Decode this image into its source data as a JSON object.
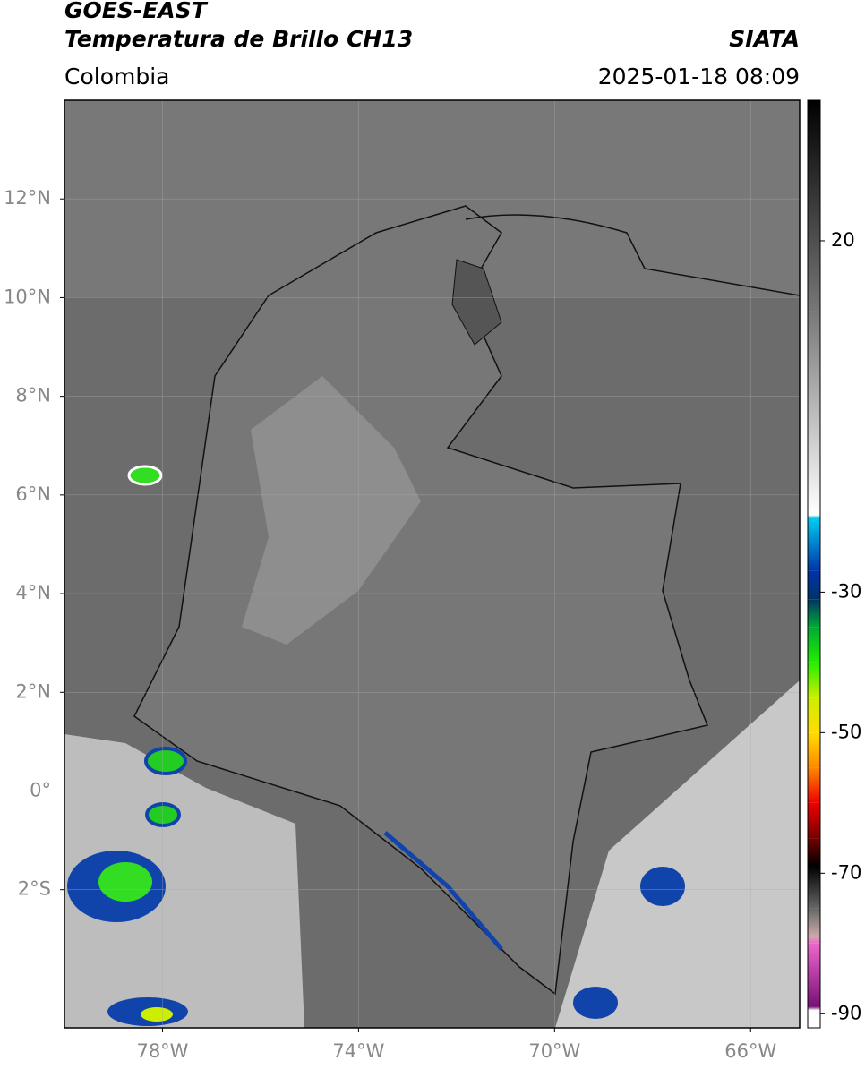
{
  "header": {
    "satellite": "GOES-EAST",
    "product": "Temperatura de Brillo CH13",
    "agency": "SIATA",
    "region": "Colombia",
    "datetime": "2025-01-18 08:09"
  },
  "map": {
    "xlim": [
      -80,
      -65
    ],
    "ylim": [
      -4.8,
      14
    ],
    "xticks": [
      {
        "value": -78,
        "label": "78°W"
      },
      {
        "value": -74,
        "label": "74°W"
      },
      {
        "value": -70,
        "label": "70°W"
      },
      {
        "value": -66,
        "label": "66°W"
      }
    ],
    "yticks": [
      {
        "value": -2,
        "label": "2°S"
      },
      {
        "value": 0,
        "label": "0°"
      },
      {
        "value": 2,
        "label": "2°N"
      },
      {
        "value": 4,
        "label": "4°N"
      },
      {
        "value": 6,
        "label": "6°N"
      },
      {
        "value": 8,
        "label": "8°N"
      },
      {
        "value": 10,
        "label": "10°N"
      },
      {
        "value": 12,
        "label": "12°N"
      }
    ],
    "grid": true
  },
  "colorbar": {
    "clim": [
      -92,
      40
    ],
    "ticks": [
      20,
      -30,
      -50,
      -70,
      -90
    ],
    "colors": [
      {
        "value": 40,
        "color": "#000000"
      },
      {
        "value": 10,
        "color": "#777777"
      },
      {
        "value": -19,
        "color": "#ffffff"
      },
      {
        "value": -19.5,
        "color": "#00ccee"
      },
      {
        "value": -27,
        "color": "#0033aa"
      },
      {
        "value": -31,
        "color": "#003366"
      },
      {
        "value": -35,
        "color": "#00aa33"
      },
      {
        "value": -40,
        "color": "#22ee00"
      },
      {
        "value": -45,
        "color": "#ccee00"
      },
      {
        "value": -50,
        "color": "#ffdd00"
      },
      {
        "value": -55,
        "color": "#ff8800"
      },
      {
        "value": -60,
        "color": "#ee0000"
      },
      {
        "value": -65,
        "color": "#770000"
      },
      {
        "value": -69,
        "color": "#000000"
      },
      {
        "value": -75,
        "color": "#666666"
      },
      {
        "value": -79,
        "color": "#ccaaaa"
      },
      {
        "value": -80,
        "color": "#ee66cc"
      },
      {
        "value": -89,
        "color": "#771177"
      },
      {
        "value": -89.5,
        "color": "#ffffff"
      },
      {
        "value": -92,
        "color": "#ffffff"
      }
    ]
  }
}
